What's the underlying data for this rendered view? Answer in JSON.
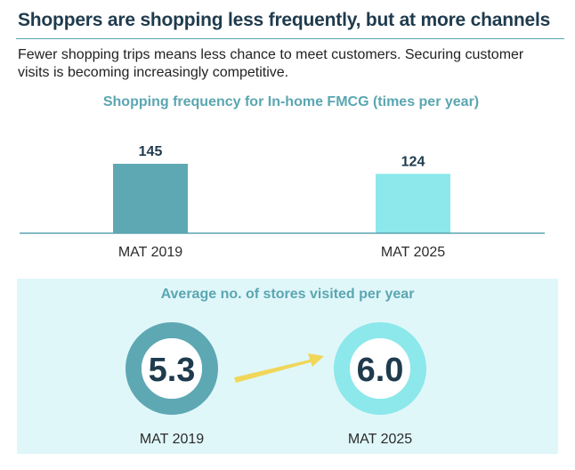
{
  "header": {
    "title": "Shoppers are shopping less frequently, but at more channels",
    "subtitle": "Fewer shopping trips means less chance to meet customers. Securing customer visits is becoming increasingly competitive."
  },
  "colors": {
    "dark_teal": "#5ea8b4",
    "light_cyan": "#8ce8ea",
    "arrow_yellow": "#f0d75a",
    "panel_bg": "#e0f7fa",
    "value_text": "#1f3b4d"
  },
  "chart_data": [
    {
      "type": "bar",
      "title": "Shopping frequency for In-home FMCG (times per year)",
      "categories": [
        "MAT 2019",
        "MAT 2025"
      ],
      "values": [
        145,
        124
      ],
      "data_labels": [
        "145",
        "124"
      ],
      "ylim": [
        0,
        145
      ],
      "grid": false,
      "annotation": "yellow arrow pointing from MAT 2019 to MAT 2025"
    },
    {
      "type": "pie",
      "title": "Average no. of stores visited per year",
      "categories": [
        "MAT 2019",
        "MAT 2025"
      ],
      "values": [
        5.3,
        6.0
      ],
      "data_labels": [
        "5.3",
        "6.0"
      ],
      "annotation": "yellow arrow pointing from MAT 2019 to MAT 2025"
    }
  ]
}
